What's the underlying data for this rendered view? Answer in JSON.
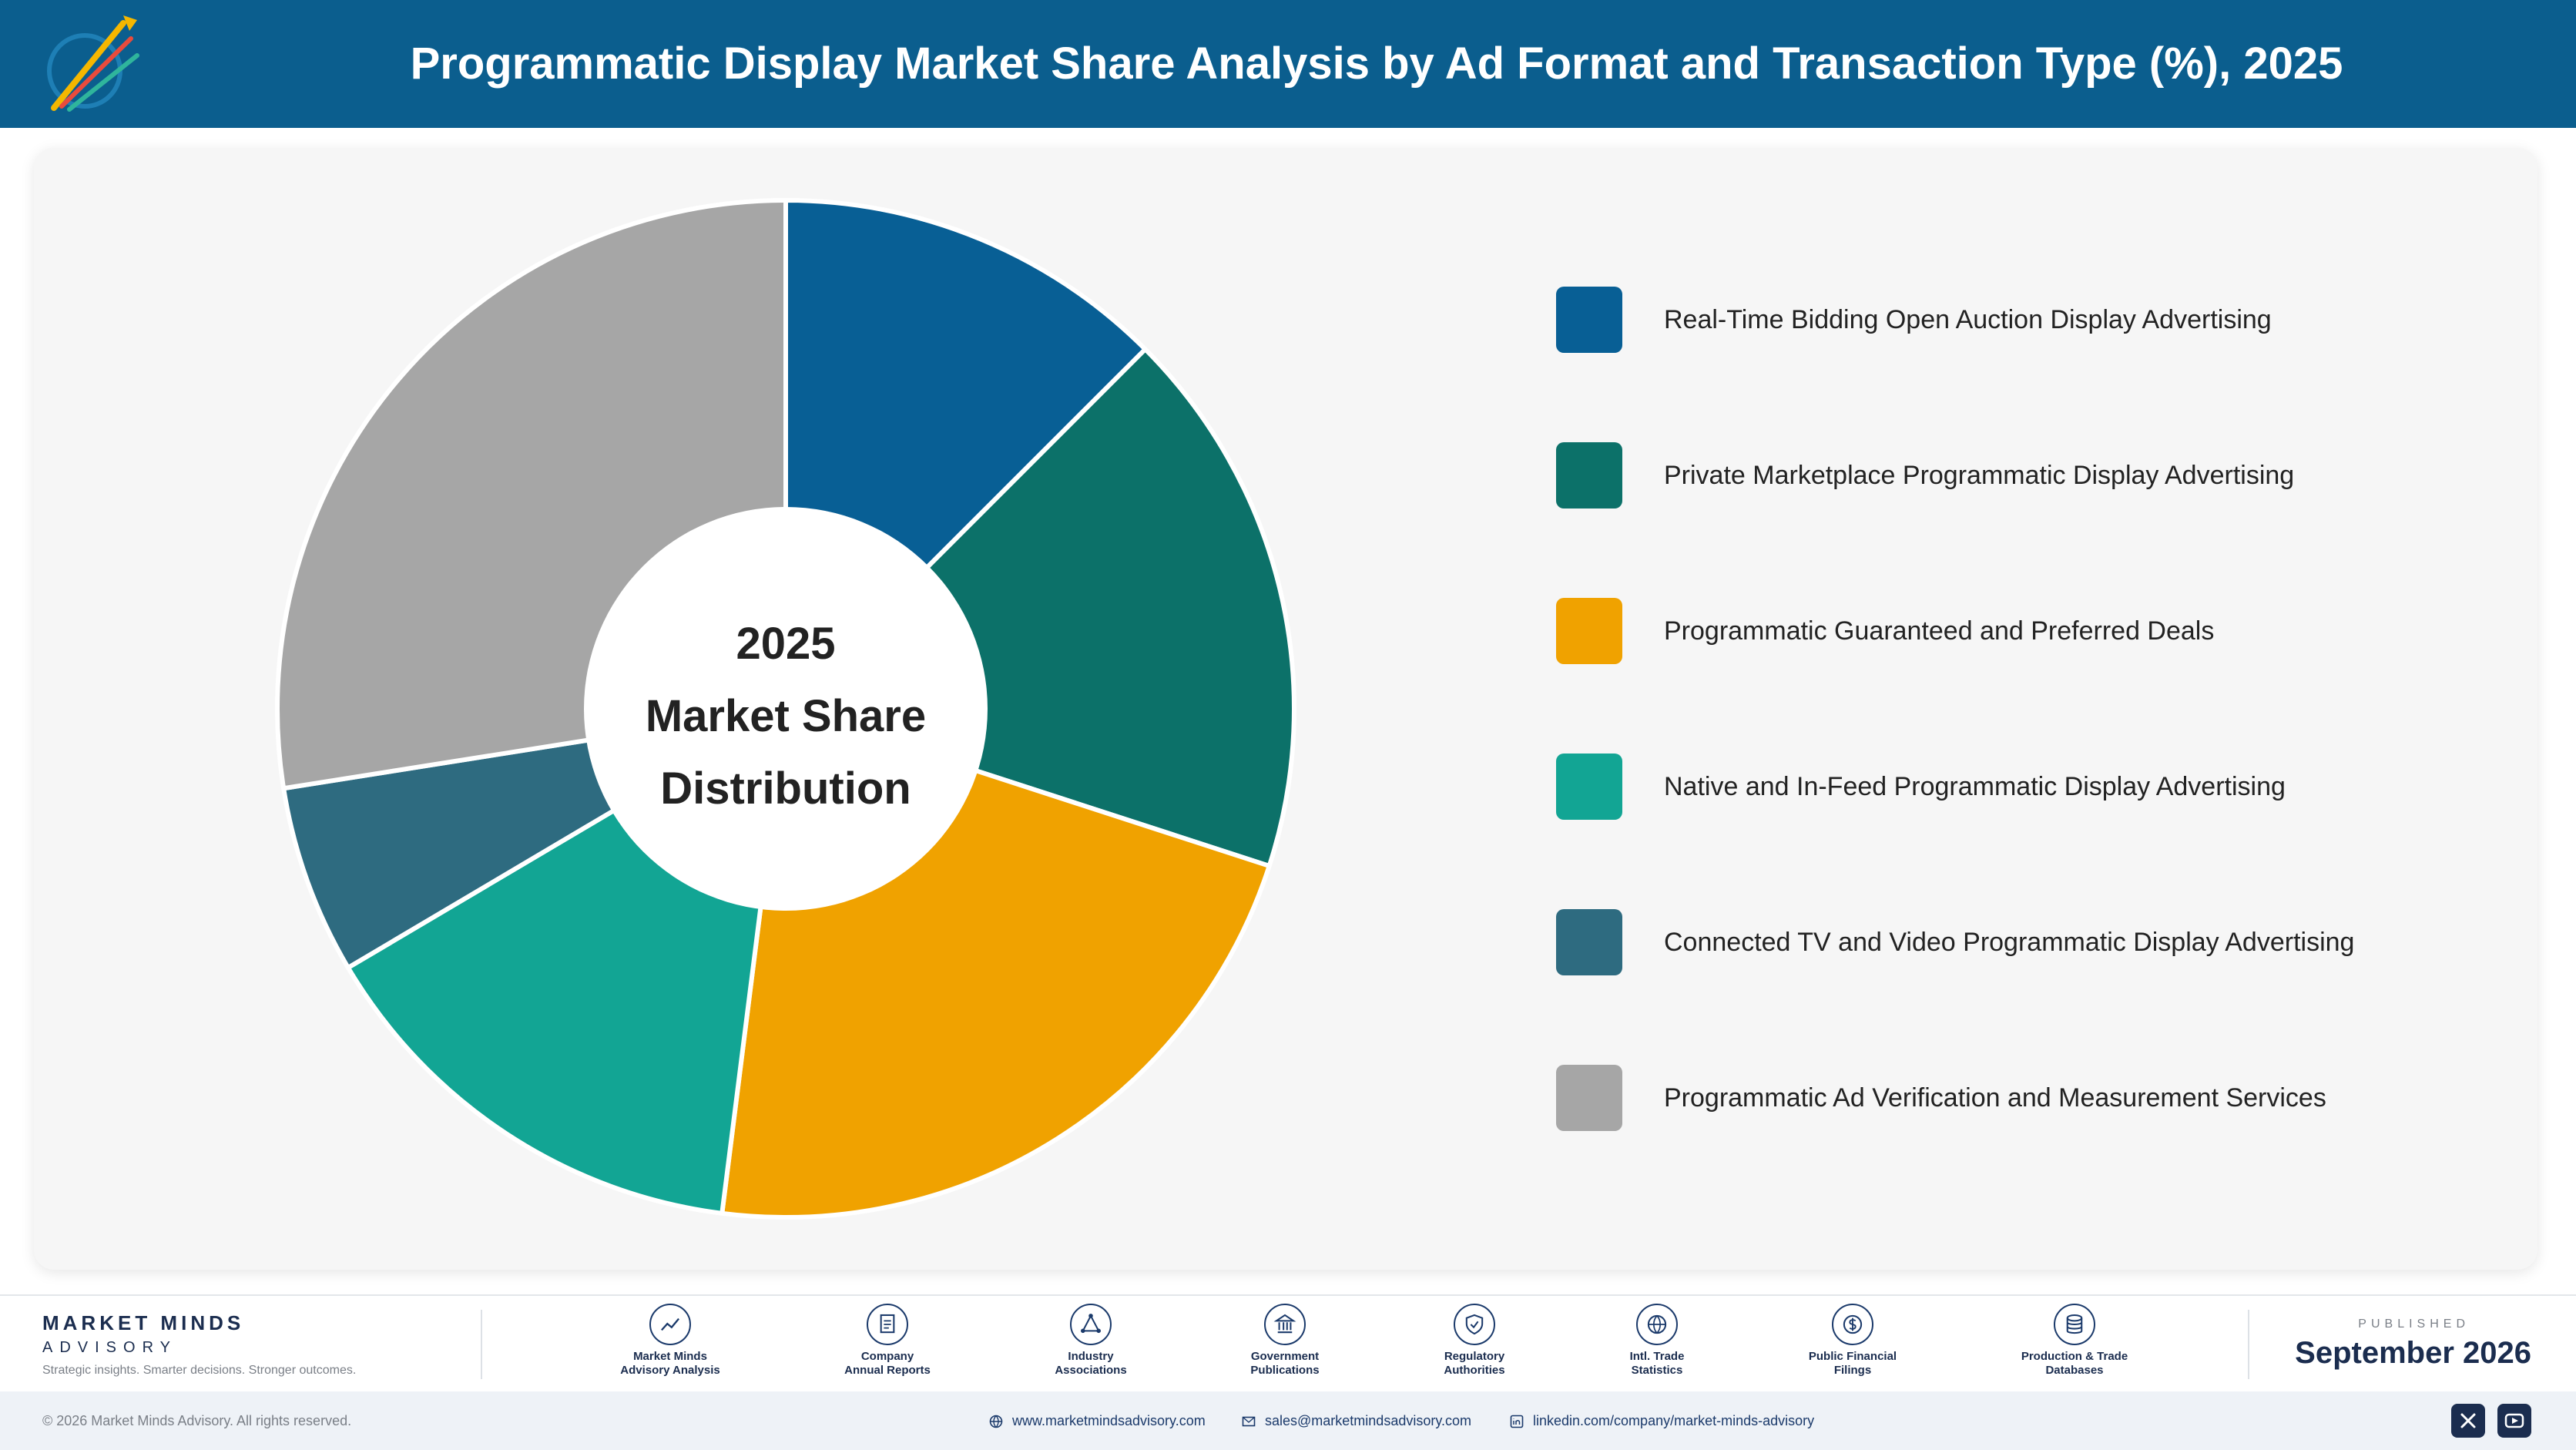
{
  "header": {
    "title": "Programmatic Display Market Share Analysis by Ad Format and Transaction Type (%), 2025"
  },
  "logo": {
    "icon": "rocket-logo-icon"
  },
  "center_label": {
    "line1": "2025",
    "line2": "Market Share",
    "line3": "Distribution"
  },
  "chart_data": {
    "type": "pie",
    "variant": "donut",
    "title": "Programmatic Display Market Share Analysis by Ad Format and Transaction Type (%), 2025",
    "unit": "%",
    "legend_placement": "right",
    "categories": [
      "Real-Time Bidding Open Auction Display Advertising",
      "Private Marketplace Programmatic Display Advertising",
      "Programmatic Guaranteed and Preferred Deals",
      "Native and In-Feed Programmatic Display Advertising",
      "Connected TV and Video Programmatic Display Advertising",
      "Programmatic Ad Verification and Measurement Services"
    ],
    "values": [
      12.5,
      17.5,
      22.0,
      14.5,
      6.0,
      27.5
    ],
    "colors": [
      "#085f95",
      "#0c7169",
      "#f0a200",
      "#12a594",
      "#2e6b80",
      "#a6a6a6"
    ]
  },
  "footer": {
    "brand_name": "MARKET MINDS",
    "brand_sub": "ADVISORY",
    "tagline": "Strategic insights. Smarter decisions. Stronger outcomes.",
    "sources": [
      {
        "line1": "Market Minds",
        "line2": "Advisory Analysis",
        "icon": "trend-chart-icon"
      },
      {
        "line1": "Company",
        "line2": "Annual Reports",
        "icon": "document-icon"
      },
      {
        "line1": "Industry",
        "line2": "Associations",
        "icon": "network-icon"
      },
      {
        "line1": "Government",
        "line2": "Publications",
        "icon": "government-building-icon"
      },
      {
        "line1": "Regulatory",
        "line2": "Authorities",
        "icon": "shield-check-icon"
      },
      {
        "line1": "Intl. Trade",
        "line2": "Statistics",
        "icon": "globe-icon"
      },
      {
        "line1": "Public Financial",
        "line2": "Filings",
        "icon": "dollar-coin-icon"
      },
      {
        "line1": "Production & Trade",
        "line2": "Databases",
        "icon": "database-icon"
      }
    ],
    "published_label": "PUBLISHED",
    "published_date": "September 2026"
  },
  "bottom_bar": {
    "copyright": "© 2026 Market Minds Advisory. All rights reserved.",
    "website": "www.marketmindsadvisory.com",
    "email": "sales@marketmindsadvisory.com",
    "linkedin": "linkedin.com/company/market-minds-advisory",
    "social": [
      "x-icon",
      "youtube-icon"
    ]
  }
}
